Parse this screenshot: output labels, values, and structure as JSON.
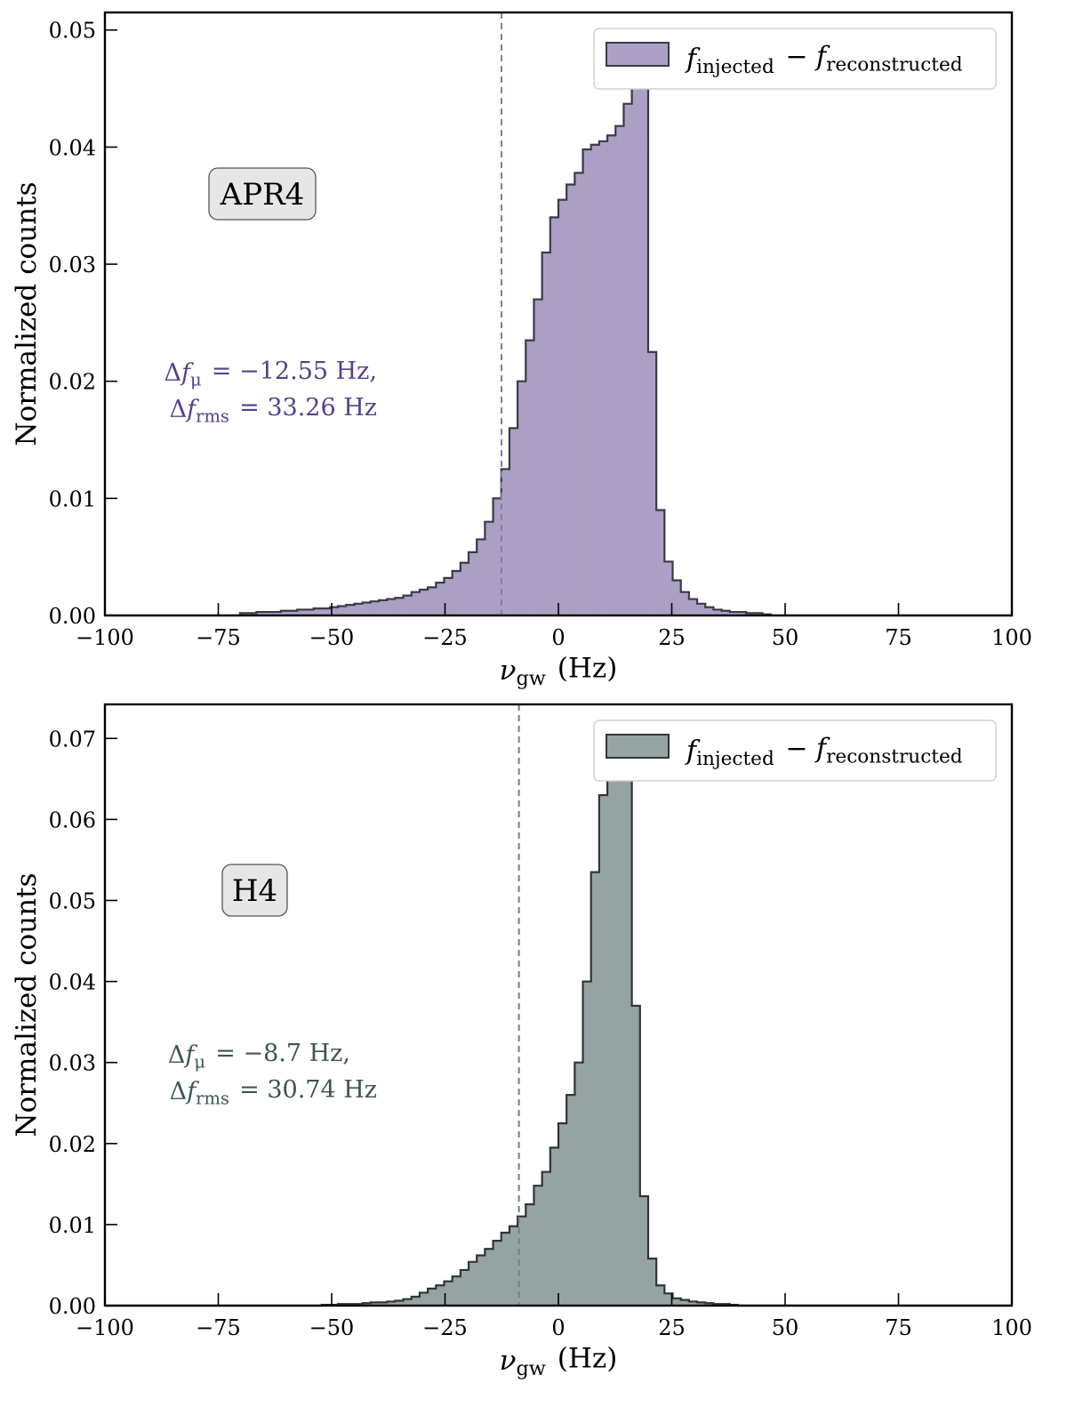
{
  "chart_data": [
    {
      "type": "histogram",
      "panel_label": "APR4",
      "xlabel": "ν_gw (Hz)",
      "ylabel": "Normalized counts",
      "xlim": [
        -100,
        100
      ],
      "ylim": [
        0,
        0.0515
      ],
      "xticks": [
        -100,
        -75,
        -50,
        -25,
        0,
        25,
        50,
        75,
        100
      ],
      "yticks": [
        0.0,
        0.01,
        0.02,
        0.03,
        0.04,
        0.05
      ],
      "legend": {
        "label": "f_injected − f_reconstructed",
        "placement": "top-right"
      },
      "fill_color": "#ab9fc3",
      "edge_color": "#3a3a48",
      "text_color": "#55428a",
      "mean_line_x": -12.55,
      "annotation": [
        "Δf_μ = −12.55 Hz,",
        "Δf_rms = 33.26 Hz"
      ],
      "bin_width": 1.8,
      "bins_start": -70.2,
      "values": [
        0.0002,
        0.0002,
        0.0003,
        0.0003,
        0.0003,
        0.0004,
        0.0004,
        0.0005,
        0.0005,
        0.0006,
        0.0006,
        0.0007,
        0.0008,
        0.0009,
        0.001,
        0.0011,
        0.0012,
        0.0013,
        0.0014,
        0.0015,
        0.0017,
        0.002,
        0.0022,
        0.0024,
        0.0028,
        0.0032,
        0.0038,
        0.0045,
        0.0054,
        0.0065,
        0.008,
        0.01,
        0.0125,
        0.016,
        0.02,
        0.0235,
        0.027,
        0.031,
        0.034,
        0.0355,
        0.0368,
        0.0378,
        0.0398,
        0.0402,
        0.0405,
        0.041,
        0.0418,
        0.0437,
        0.0487,
        0.045,
        0.0225,
        0.009,
        0.0046,
        0.003,
        0.002,
        0.0014,
        0.001,
        0.0007,
        0.0005,
        0.0004,
        0.0003,
        0.0003,
        0.0002,
        0.0002,
        0.0001
      ]
    },
    {
      "type": "histogram",
      "panel_label": "H4",
      "xlabel": "ν_gw (Hz)",
      "ylabel": "Normalized counts",
      "xlim": [
        -100,
        100
      ],
      "ylim": [
        0,
        0.0742
      ],
      "xticks": [
        -100,
        -75,
        -50,
        -25,
        0,
        25,
        50,
        75,
        100
      ],
      "yticks": [
        0.0,
        0.01,
        0.02,
        0.03,
        0.04,
        0.05,
        0.06,
        0.07
      ],
      "legend": {
        "label": "f_injected − f_reconstructed",
        "placement": "top-right"
      },
      "fill_color": "#95a3a3",
      "edge_color": "#2e3636",
      "text_color": "#3a5555",
      "mean_line_x": -8.7,
      "annotation": [
        "Δf_μ = −8.7 Hz,",
        "Δf_rms = 30.74 Hz"
      ],
      "bin_width": 1.8,
      "bins_start": -52.2,
      "values": [
        0.0001,
        0.0001,
        0.0002,
        0.0002,
        0.0002,
        0.0003,
        0.0004,
        0.0004,
        0.0005,
        0.0006,
        0.0008,
        0.0011,
        0.0016,
        0.0021,
        0.0025,
        0.003,
        0.0036,
        0.0044,
        0.0054,
        0.0062,
        0.007,
        0.008,
        0.009,
        0.0098,
        0.011,
        0.0125,
        0.0148,
        0.0165,
        0.0195,
        0.0225,
        0.026,
        0.03,
        0.04,
        0.0535,
        0.063,
        0.068,
        0.0705,
        0.0705,
        0.037,
        0.0135,
        0.0058,
        0.0025,
        0.0015,
        0.0009,
        0.0007,
        0.0005,
        0.0004,
        0.0003,
        0.0002,
        0.0002,
        0.0001
      ]
    }
  ]
}
